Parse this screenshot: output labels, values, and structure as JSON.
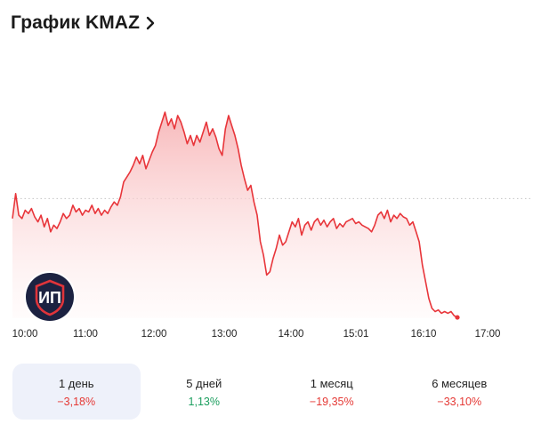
{
  "header": {
    "title": "График KMAZ",
    "chevron_icon": "chevron-right-icon"
  },
  "colors": {
    "line": "#e8353a",
    "fill_top": "#f7b5b7",
    "fill_bottom": "#fff5f5",
    "reference_line": "#c4c4c4"
  },
  "chart_data": {
    "type": "area",
    "title": "",
    "xlabel": "",
    "ylabel": "",
    "x_ticks": [
      "10:00",
      "11:00",
      "12:00",
      "13:00",
      "14:00",
      "15:01",
      "16:10",
      "17:00"
    ],
    "reference_line": {
      "style": "dotted",
      "note": "previous close"
    },
    "grid": false,
    "series": [
      {
        "values": [
          60,
          75,
          62,
          60,
          65,
          63,
          66,
          61,
          58,
          62,
          55,
          60,
          52,
          56,
          54,
          58,
          63,
          60,
          62,
          68,
          64,
          66,
          62,
          65,
          64,
          68,
          63,
          66,
          62,
          65,
          63,
          67,
          70,
          68,
          73,
          82,
          85,
          88,
          92,
          97,
          93,
          98,
          90,
          95,
          100,
          104,
          112,
          118,
          124,
          116,
          120,
          114,
          122,
          118,
          112,
          105,
          110,
          104,
          110,
          106,
          112,
          118,
          110,
          114,
          109,
          102,
          98,
          114,
          122,
          116,
          110,
          102,
          92,
          84,
          77,
          80,
          70,
          62,
          46,
          38,
          26,
          28,
          36,
          42,
          50,
          44,
          46,
          52,
          58,
          55,
          60,
          50,
          56,
          58,
          53,
          58,
          60,
          56,
          59,
          55,
          58,
          60,
          54,
          57,
          55,
          58,
          59,
          60,
          57,
          58,
          56,
          55,
          54,
          52,
          56,
          62,
          64,
          60,
          65,
          58,
          62,
          60,
          63,
          61,
          60,
          56,
          58,
          52,
          46,
          32,
          22,
          12,
          6,
          4,
          5,
          3,
          4,
          3,
          4,
          1.5,
          0.5
        ]
      }
    ],
    "y_range": [
      0,
      130
    ],
    "reference_value": 72
  },
  "periods": [
    {
      "label": "1 день",
      "change": "−3,18%",
      "direction": "negative",
      "active": true
    },
    {
      "label": "5 дней",
      "change": "1,13%",
      "direction": "positive",
      "active": false
    },
    {
      "label": "1 месяц",
      "change": "−19,35%",
      "direction": "negative",
      "active": false
    },
    {
      "label": "6 месяцев",
      "change": "−33,10%",
      "direction": "negative",
      "active": false
    }
  ],
  "logo": {
    "text": "ИП",
    "icon": "shield-logo-icon"
  }
}
